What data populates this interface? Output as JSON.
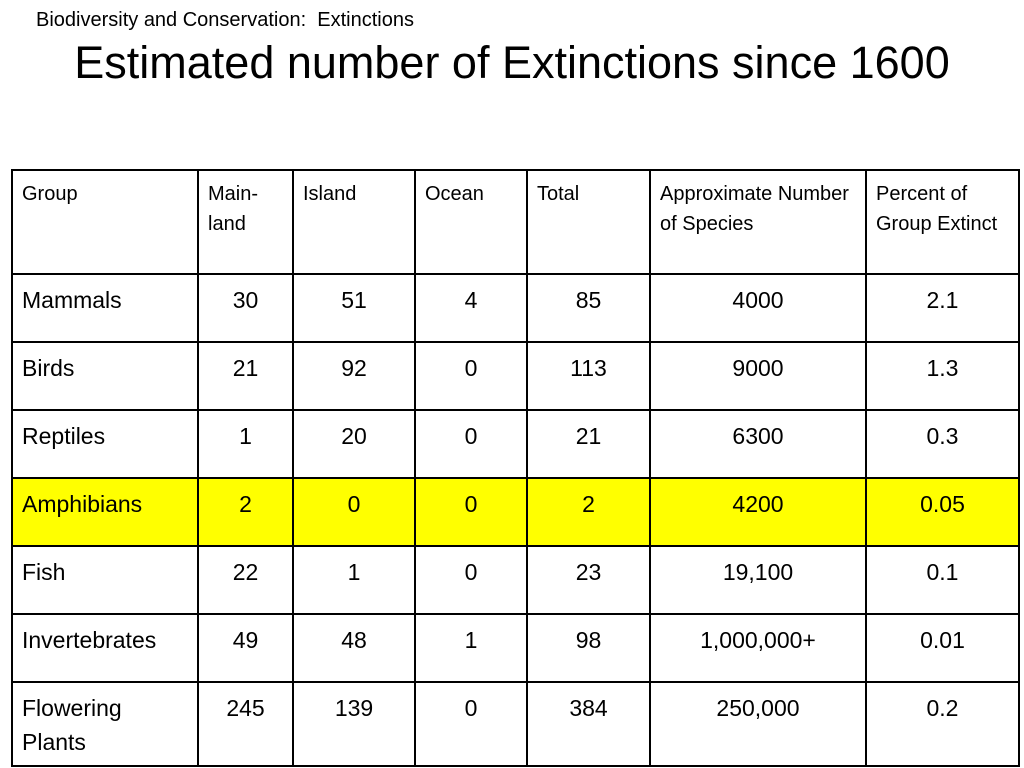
{
  "header": {
    "subtitle": "Biodiversity and Conservation:  Extinctions",
    "title": "Estimated number of Extinctions since 1600"
  },
  "table": {
    "columns": [
      "Group",
      "Main-land",
      "Island",
      "Ocean",
      "Total",
      "Approximate Number of Species",
      "Percent of Group Extinct"
    ],
    "highlight_color": "#ffff00",
    "rows": [
      {
        "group": "Mammals",
        "mainland": "30",
        "island": "51",
        "ocean": "4",
        "total": "85",
        "species": "4000",
        "percent": "2.1",
        "highlighted": false
      },
      {
        "group": "Birds",
        "mainland": "21",
        "island": "92",
        "ocean": "0",
        "total": "113",
        "species": "9000",
        "percent": "1.3",
        "highlighted": false
      },
      {
        "group": "Reptiles",
        "mainland": "1",
        "island": "20",
        "ocean": "0",
        "total": "21",
        "species": "6300",
        "percent": "0.3",
        "highlighted": false
      },
      {
        "group": "Amphibians",
        "mainland": "2",
        "island": "0",
        "ocean": "0",
        "total": "2",
        "species": "4200",
        "percent": "0.05",
        "highlighted": true
      },
      {
        "group": "Fish",
        "mainland": "22",
        "island": "1",
        "ocean": "0",
        "total": "23",
        "species": "19,100",
        "percent": "0.1",
        "highlighted": false
      },
      {
        "group": "Invertebrates",
        "mainland": "49",
        "island": "48",
        "ocean": "1",
        "total": "98",
        "species": "1,000,000+",
        "percent": "0.01",
        "highlighted": false
      },
      {
        "group": "Flowering Plants",
        "mainland": "245",
        "island": "139",
        "ocean": "0",
        "total": "384",
        "species": "250,000",
        "percent": "0.2",
        "highlighted": false
      }
    ]
  }
}
